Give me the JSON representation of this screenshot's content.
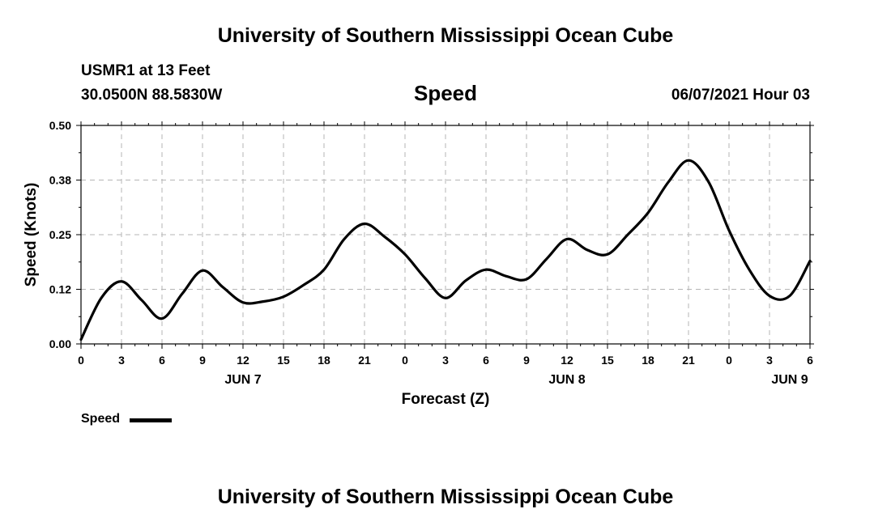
{
  "header": {
    "title": "University of Southern Mississippi Ocean Cube",
    "station": "USMR1 at 13 Feet",
    "coords": "30.0500N  88.5830W",
    "datetime": "06/07/2021 Hour 03"
  },
  "footer": {
    "title": "University of Southern Mississippi Ocean Cube"
  },
  "legend": {
    "label": "Speed"
  },
  "colors": {
    "line": "#000000",
    "grid": "#b5b5b5"
  },
  "chart_data": {
    "type": "line",
    "title": "Speed",
    "xlabel": "Forecast (Z)",
    "ylabel": "Speed (Knots)",
    "ylim": [
      0,
      0.5
    ],
    "xlim": [
      0,
      54
    ],
    "grid": true,
    "legend": "bottom-left",
    "y_ticks": [
      "0.00",
      "0.12",
      "0.25",
      "0.38",
      "0.50"
    ],
    "x_ticks": [
      "0",
      "3",
      "6",
      "9",
      "12",
      "15",
      "18",
      "21",
      "0",
      "3",
      "6",
      "9",
      "12",
      "15",
      "18",
      "21",
      "0",
      "3",
      "6"
    ],
    "day_labels": [
      {
        "hour": 12,
        "label": "JUN 7"
      },
      {
        "hour": 36,
        "label": "JUN 8"
      },
      {
        "hour": 52.5,
        "label": "JUN 9"
      }
    ],
    "series": [
      {
        "name": "Speed",
        "x": [
          0,
          1.5,
          3,
          4.5,
          6,
          7.5,
          9,
          10.5,
          12,
          13.5,
          15,
          16.5,
          18,
          19.5,
          21,
          22.5,
          24,
          25.5,
          27,
          28.5,
          30,
          31.5,
          33,
          34.5,
          36,
          37.5,
          39,
          40.5,
          42,
          43.5,
          45,
          46.5,
          48,
          49.5,
          51,
          52.5,
          54
        ],
        "values": [
          0.01,
          0.105,
          0.143,
          0.1,
          0.058,
          0.115,
          0.168,
          0.13,
          0.095,
          0.097,
          0.108,
          0.135,
          0.17,
          0.24,
          0.275,
          0.245,
          0.205,
          0.15,
          0.105,
          0.145,
          0.17,
          0.155,
          0.148,
          0.195,
          0.24,
          0.215,
          0.205,
          0.25,
          0.3,
          0.37,
          0.42,
          0.37,
          0.26,
          0.17,
          0.11,
          0.11,
          0.19
        ]
      }
    ]
  }
}
